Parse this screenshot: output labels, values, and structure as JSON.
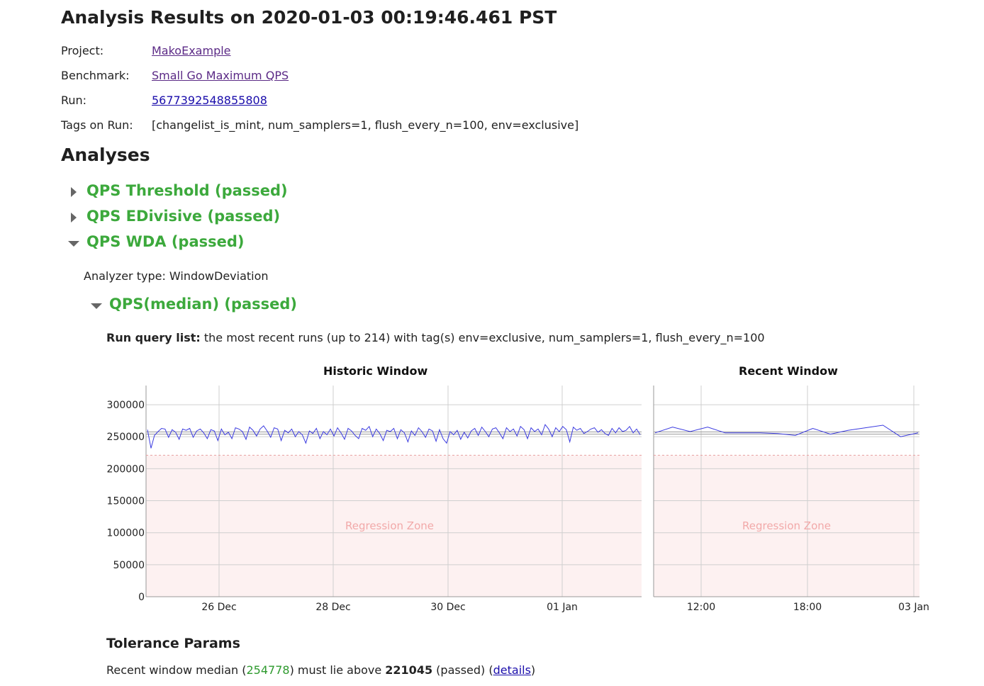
{
  "header": {
    "title": "Analysis Results on 2020-01-03 00:19:46.461 PST",
    "project_label": "Project:",
    "project_value": "MakoExample",
    "benchmark_label": "Benchmark:",
    "benchmark_value": "Small Go Maximum QPS",
    "run_label": "Run:",
    "run_value": "5677392548855808",
    "tags_label": "Tags on Run:",
    "tags_value": "[changelist_is_mint, num_samplers=1, flush_every_n=100, env=exclusive]"
  },
  "analyses": {
    "heading": "Analyses",
    "items": [
      {
        "title": "QPS Threshold (passed)",
        "expanded": false
      },
      {
        "title": "QPS EDivisive (passed)",
        "expanded": false
      },
      {
        "title": "QPS WDA (passed)",
        "expanded": true
      }
    ],
    "wda": {
      "analyzer_type": "Analyzer type: WindowDeviation",
      "sub_title": "QPS(median) (passed)",
      "run_query_label": "Run query list:",
      "run_query_text": " the most recent runs (up to 214) with tag(s) env=exclusive, num_samplers=1, flush_every_n=100",
      "tolerance_heading": "Tolerance Params",
      "tolerance": {
        "prefix": "Recent window median (",
        "median": "254778",
        "mid": ") must lie above ",
        "threshold": "221045",
        "suffix": " (passed) (",
        "details_link": "details",
        "end": ")"
      }
    }
  },
  "chart_data": [
    {
      "type": "line",
      "title": "Historic Window",
      "ylim": [
        0,
        330000
      ],
      "yticks": [
        "300000",
        "250000",
        "200000",
        "150000",
        "100000",
        "50000",
        "0"
      ],
      "ytick_values": [
        300000,
        250000,
        200000,
        150000,
        100000,
        50000,
        0
      ],
      "xtick_labels": [
        "26 Dec",
        "28 Dec",
        "30 Dec",
        "01 Jan"
      ],
      "threshold": 221045,
      "median_band": [
        254000,
        257500
      ],
      "zone_label": "Regression Zone",
      "series_color": "#3b3be0",
      "zone_color": "#fdf1f1",
      "values": [
        261000,
        232000,
        252000,
        258000,
        263000,
        262000,
        249000,
        261000,
        257000,
        246000,
        262000,
        260000,
        263000,
        249000,
        259000,
        262000,
        256000,
        247000,
        261000,
        259000,
        244000,
        262000,
        253000,
        257000,
        247000,
        264000,
        262000,
        258000,
        246000,
        265000,
        260000,
        251000,
        262000,
        267000,
        259000,
        249000,
        264000,
        262000,
        244000,
        260000,
        256000,
        262000,
        250000,
        258000,
        253000,
        240000,
        259000,
        255000,
        263000,
        247000,
        258000,
        253000,
        262000,
        251000,
        264000,
        256000,
        246000,
        263000,
        259000,
        252000,
        247000,
        263000,
        260000,
        266000,
        250000,
        262000,
        255000,
        244000,
        260000,
        258000,
        263000,
        247000,
        261000,
        256000,
        242000,
        259000,
        252000,
        264000,
        258000,
        249000,
        262000,
        259000,
        243000,
        261000,
        247000,
        240000,
        258000,
        253000,
        260000,
        246000,
        257000,
        248000,
        259000,
        263000,
        252000,
        265000,
        258000,
        250000,
        262000,
        264000,
        256000,
        247000,
        264000,
        258000,
        262000,
        251000,
        266000,
        261000,
        247000,
        264000,
        258000,
        262000,
        253000,
        269000,
        262000,
        250000,
        264000,
        258000,
        266000,
        261000,
        242000,
        265000,
        260000,
        263000,
        255000,
        258000,
        262000,
        264000,
        257000,
        261000,
        255000,
        252000,
        263000,
        256000,
        264000,
        258000,
        260000,
        266000,
        256000,
        262000,
        253000
      ]
    },
    {
      "type": "line",
      "title": "Recent Window",
      "ylim": [
        0,
        330000
      ],
      "xtick_labels": [
        "12:00",
        "18:00",
        "03 Jan"
      ],
      "threshold": 221045,
      "median_band": [
        254000,
        257500
      ],
      "zone_label": "Regression Zone",
      "series_color": "#3b3be0",
      "zone_color": "#fdf1f1",
      "values": [
        256000,
        265000,
        258000,
        265000,
        256000,
        256000,
        256000,
        255000,
        252000,
        263000,
        254000,
        260000,
        264000,
        268000,
        250000,
        256000
      ]
    }
  ]
}
